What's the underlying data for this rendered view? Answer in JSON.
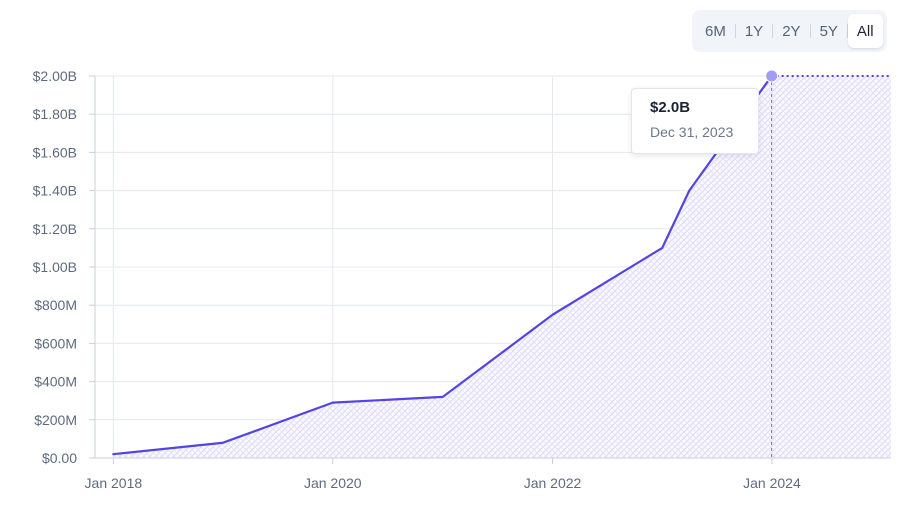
{
  "range_selector": {
    "options": [
      "6M",
      "1Y",
      "2Y",
      "5Y",
      "All"
    ],
    "selected": "All"
  },
  "tooltip": {
    "value": "$2.0B",
    "date": "Dec 31, 2023"
  },
  "colors": {
    "line": "#5545e0",
    "fill_pattern": "#d7d2f6",
    "grid": "#e4e8ef",
    "axis": "#c8d0dc",
    "marker": "#a49cf0"
  },
  "chart_data": {
    "type": "area",
    "title": "",
    "xlabel": "",
    "ylabel": "",
    "ylim": [
      0,
      2000000000
    ],
    "y_ticks": [
      {
        "value": 0,
        "label": "$0.00"
      },
      {
        "value": 200000000,
        "label": "$200M"
      },
      {
        "value": 400000000,
        "label": "$400M"
      },
      {
        "value": 600000000,
        "label": "$600M"
      },
      {
        "value": 800000000,
        "label": "$800M"
      },
      {
        "value": 1000000000,
        "label": "$1.00B"
      },
      {
        "value": 1200000000,
        "label": "$1.20B"
      },
      {
        "value": 1400000000,
        "label": "$1.40B"
      },
      {
        "value": 1600000000,
        "label": "$1.60B"
      },
      {
        "value": 1800000000,
        "label": "$1.80B"
      },
      {
        "value": 2000000000,
        "label": "$2.00B"
      }
    ],
    "x_ticks": [
      {
        "value": "2018-01-01",
        "label": "Jan 2018"
      },
      {
        "value": "2020-01-01",
        "label": "Jan 2020"
      },
      {
        "value": "2022-01-01",
        "label": "Jan 2022"
      },
      {
        "value": "2024-01-01",
        "label": "Jan 2024"
      }
    ],
    "xlim": [
      "2017-11-01",
      "2025-01-31"
    ],
    "grid": true,
    "legend": "none",
    "series": [
      {
        "points": [
          {
            "x": "2018-01-01",
            "y": 20000000
          },
          {
            "x": "2019-01-01",
            "y": 80000000
          },
          {
            "x": "2020-01-01",
            "y": 290000000
          },
          {
            "x": "2021-01-01",
            "y": 320000000
          },
          {
            "x": "2022-01-01",
            "y": 750000000
          },
          {
            "x": "2023-01-01",
            "y": 1100000000
          },
          {
            "x": "2023-04-01",
            "y": 1400000000
          },
          {
            "x": "2023-12-31",
            "y": 2000000000
          }
        ]
      }
    ],
    "highlight": {
      "x": "2023-12-31",
      "y": 2000000000
    }
  }
}
